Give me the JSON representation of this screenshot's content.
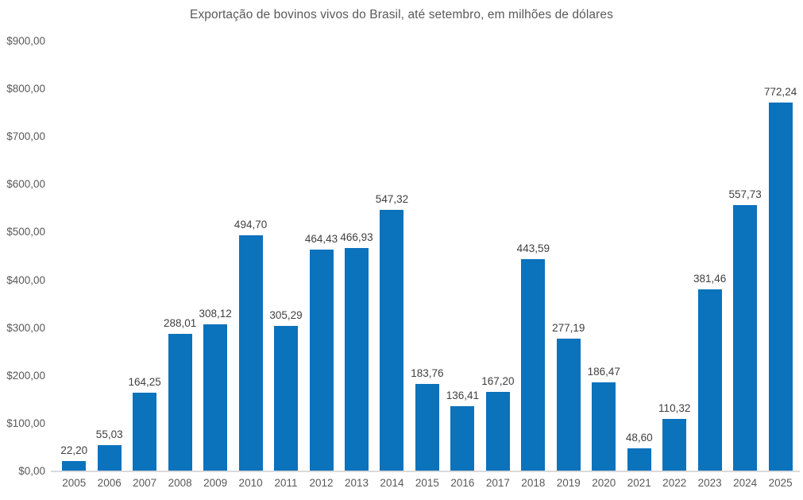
{
  "chart_data": {
    "type": "bar",
    "title": "Exportação de bovinos vivos do Brasil, até setembro, em milhões de dólares",
    "categories": [
      "2005",
      "2006",
      "2007",
      "2008",
      "2009",
      "2010",
      "2011",
      "2012",
      "2013",
      "2014",
      "2015",
      "2016",
      "2017",
      "2018",
      "2019",
      "2020",
      "2021",
      "2022",
      "2023",
      "2024",
      "2025"
    ],
    "values": [
      22.2,
      55.03,
      164.25,
      288.01,
      308.12,
      494.7,
      305.29,
      464.43,
      466.93,
      547.32,
      183.76,
      136.41,
      167.2,
      443.59,
      277.19,
      186.47,
      48.6,
      110.32,
      381.46,
      557.73,
      772.24
    ],
    "values_display": [
      "22,20",
      "55,03",
      "164,25",
      "288,01",
      "308,12",
      "494,70",
      "305,29",
      "464,43",
      "466,93",
      "547,32",
      "183,76",
      "136,41",
      "167,20",
      "443,59",
      "277,19",
      "186,47",
      "48,60",
      "110,32",
      "381,46",
      "557,73",
      "772,24"
    ],
    "xlabel": "",
    "ylabel": "",
    "ylim": [
      0,
      900
    ],
    "y_ticks": [
      {
        "value": 0,
        "label": "$0,00"
      },
      {
        "value": 100,
        "label": "$100,00"
      },
      {
        "value": 200,
        "label": "$200,00"
      },
      {
        "value": 300,
        "label": "$300,00"
      },
      {
        "value": 400,
        "label": "$400,00"
      },
      {
        "value": 500,
        "label": "$500,00"
      },
      {
        "value": 600,
        "label": "$600,00"
      },
      {
        "value": 700,
        "label": "$700,00"
      },
      {
        "value": 800,
        "label": "$800,00"
      },
      {
        "value": 900,
        "label": "$900,00"
      }
    ],
    "grid": false,
    "legend": false,
    "bar_color": "#0b72bc",
    "data_label_color": "#404040",
    "axis_text_color": "#595959",
    "axis_line_color": "#d9d9d9",
    "background_color": "#ffffff"
  }
}
